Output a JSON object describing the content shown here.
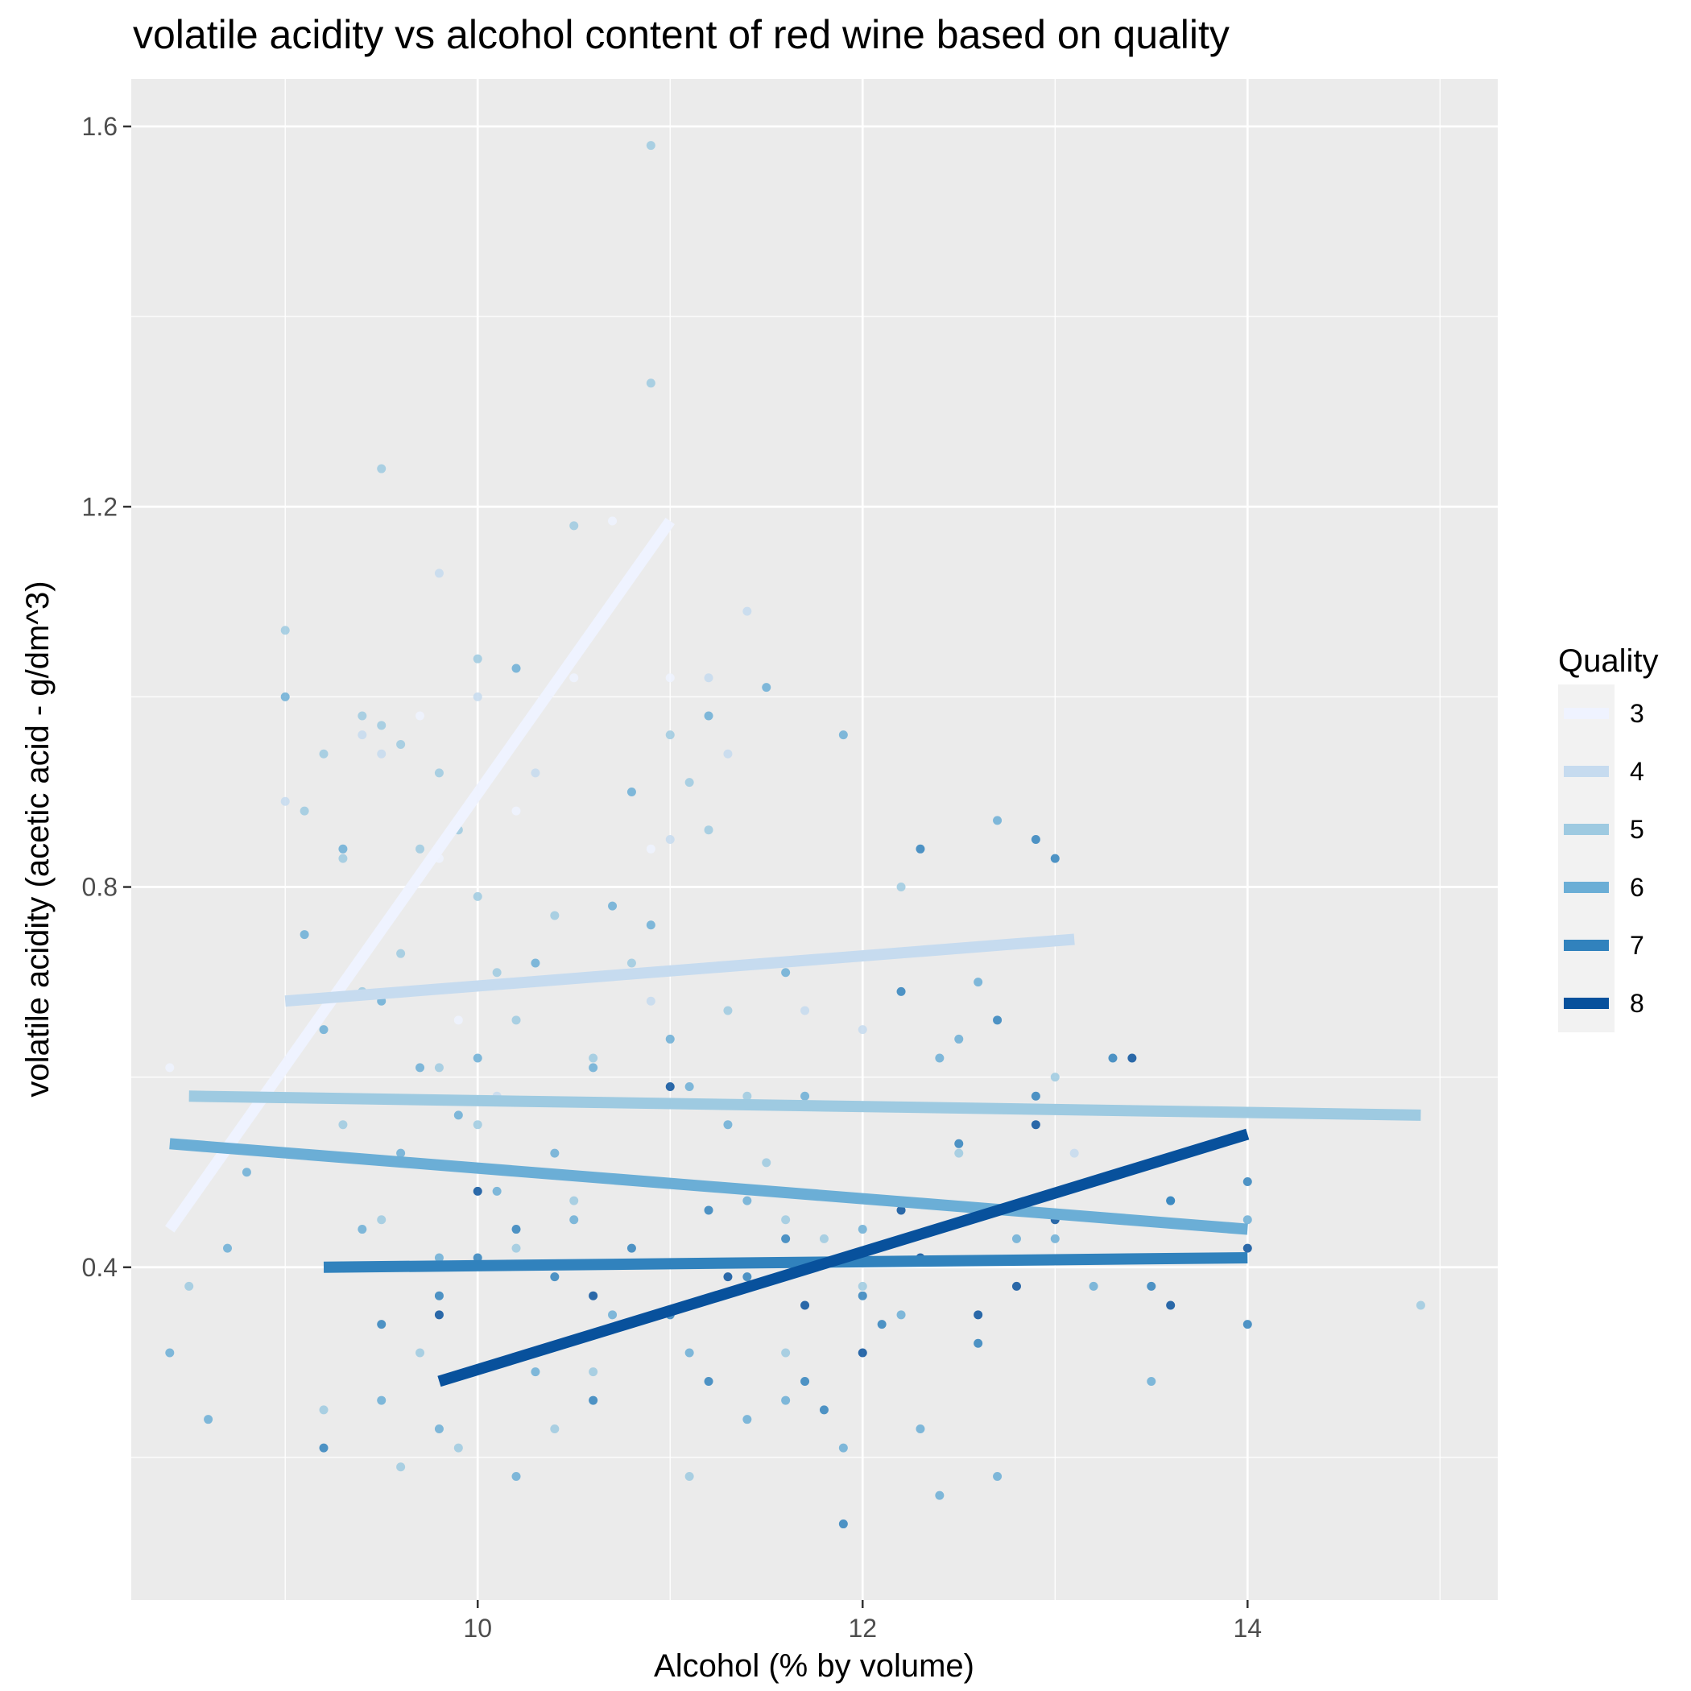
{
  "chart_data": {
    "type": "scatter",
    "title": "volatile acidity vs alcohol content of red wine based on quality",
    "xlabel": "Alcohol (% by volume)",
    "ylabel": "volatile acidity (acetic acid - g/dm^3)",
    "xlim": [
      8.2,
      15.3
    ],
    "ylim": [
      0.05,
      1.65
    ],
    "x_ticks": [
      10,
      12,
      14
    ],
    "x_tick_labels": [
      "10",
      "12",
      "14"
    ],
    "y_ticks": [
      0.4,
      0.8,
      1.2,
      1.6
    ],
    "y_tick_labels": [
      "0.4",
      "0.8",
      "1.2",
      "1.6"
    ],
    "x_minor_ticks": [
      9,
      11,
      13,
      15
    ],
    "y_minor_ticks": [
      0.2,
      0.6,
      1.0,
      1.4
    ],
    "grid": true,
    "legend": {
      "title": "Quality",
      "position": "right",
      "entries": [
        "3",
        "4",
        "5",
        "6",
        "7",
        "8"
      ]
    },
    "colors": {
      "panel_bg": "#ebebeb",
      "grid": "#ffffff",
      "3": "#eff3ff",
      "4": "#c6dbef",
      "5": "#9ecae1",
      "6": "#6baed6",
      "7": "#3182bd",
      "8": "#08519c"
    },
    "series": [
      {
        "name": "3",
        "points": [
          [
            8.4,
            0.61
          ],
          [
            9.0,
            0.58
          ],
          [
            9.7,
            0.98
          ],
          [
            9.9,
            0.66
          ],
          [
            10.2,
            0.88
          ],
          [
            10.5,
            1.02
          ],
          [
            10.7,
            1.185
          ],
          [
            11.0,
            1.02
          ],
          [
            9.8,
            0.83
          ],
          [
            10.9,
            0.84
          ]
        ],
        "trend": [
          [
            8.4,
            0.44
          ],
          [
            11.0,
            1.185
          ]
        ]
      },
      {
        "name": "4",
        "points": [
          [
            9.0,
            0.89
          ],
          [
            9.5,
            0.94
          ],
          [
            9.8,
            1.13
          ],
          [
            10.0,
            1.0
          ],
          [
            10.3,
            0.92
          ],
          [
            10.9,
            0.68
          ],
          [
            11.0,
            0.85
          ],
          [
            11.2,
            1.02
          ],
          [
            11.3,
            0.94
          ],
          [
            11.4,
            1.09
          ],
          [
            11.7,
            0.67
          ],
          [
            13.1,
            0.52
          ],
          [
            9.4,
            0.96
          ],
          [
            10.1,
            0.58
          ],
          [
            12.0,
            0.65
          ]
        ],
        "trend": [
          [
            9.0,
            0.68
          ],
          [
            13.1,
            0.745
          ]
        ]
      },
      {
        "name": "5",
        "points": [
          [
            8.5,
            0.38
          ],
          [
            9.0,
            1.07
          ],
          [
            9.1,
            0.88
          ],
          [
            9.2,
            0.94
          ],
          [
            9.3,
            0.83
          ],
          [
            9.4,
            0.98
          ],
          [
            9.5,
            1.24
          ],
          [
            9.5,
            0.97
          ],
          [
            9.6,
            0.95
          ],
          [
            9.7,
            0.84
          ],
          [
            9.8,
            0.92
          ],
          [
            9.9,
            0.86
          ],
          [
            10.0,
            1.04
          ],
          [
            10.0,
            0.79
          ],
          [
            10.1,
            0.71
          ],
          [
            10.2,
            0.66
          ],
          [
            10.4,
            0.77
          ],
          [
            10.5,
            1.18
          ],
          [
            10.6,
            0.62
          ],
          [
            10.8,
            0.72
          ],
          [
            10.9,
            1.58
          ],
          [
            10.9,
            1.33
          ],
          [
            11.0,
            0.96
          ],
          [
            11.1,
            0.91
          ],
          [
            11.2,
            0.86
          ],
          [
            11.3,
            0.67
          ],
          [
            11.4,
            0.58
          ],
          [
            11.5,
            0.51
          ],
          [
            11.6,
            0.45
          ],
          [
            11.8,
            0.43
          ],
          [
            12.0,
            0.38
          ],
          [
            12.5,
            0.52
          ],
          [
            13.0,
            0.6
          ],
          [
            14.9,
            0.36
          ],
          [
            9.3,
            0.55
          ],
          [
            9.5,
            0.45
          ],
          [
            9.7,
            0.31
          ],
          [
            9.9,
            0.21
          ],
          [
            10.2,
            0.42
          ],
          [
            10.4,
            0.23
          ],
          [
            10.6,
            0.29
          ],
          [
            9.6,
            0.19
          ],
          [
            9.2,
            0.25
          ],
          [
            11.1,
            0.18
          ],
          [
            11.6,
            0.31
          ],
          [
            12.2,
            0.8
          ],
          [
            9.4,
            0.69
          ],
          [
            9.6,
            0.73
          ],
          [
            9.8,
            0.61
          ],
          [
            10.0,
            0.55
          ],
          [
            10.3,
            0.5
          ],
          [
            10.5,
            0.47
          ]
        ],
        "trend": [
          [
            8.5,
            0.58
          ],
          [
            14.9,
            0.56
          ]
        ]
      },
      {
        "name": "6",
        "points": [
          [
            8.4,
            0.31
          ],
          [
            8.7,
            0.42
          ],
          [
            8.8,
            0.5
          ],
          [
            9.0,
            1.0
          ],
          [
            9.1,
            0.75
          ],
          [
            9.2,
            0.65
          ],
          [
            9.3,
            0.84
          ],
          [
            9.4,
            0.44
          ],
          [
            9.5,
            0.68
          ],
          [
            9.6,
            0.52
          ],
          [
            9.7,
            0.61
          ],
          [
            9.8,
            0.41
          ],
          [
            9.9,
            0.56
          ],
          [
            10.0,
            0.62
          ],
          [
            10.1,
            0.48
          ],
          [
            10.2,
            1.03
          ],
          [
            10.3,
            0.72
          ],
          [
            10.4,
            0.52
          ],
          [
            10.5,
            0.45
          ],
          [
            10.6,
            0.61
          ],
          [
            10.7,
            0.78
          ],
          [
            10.8,
            0.9
          ],
          [
            10.9,
            0.76
          ],
          [
            11.0,
            0.64
          ],
          [
            11.1,
            0.59
          ],
          [
            11.2,
            0.98
          ],
          [
            11.3,
            0.55
          ],
          [
            11.4,
            0.47
          ],
          [
            11.5,
            1.01
          ],
          [
            11.6,
            0.71
          ],
          [
            11.7,
            0.58
          ],
          [
            11.9,
            0.96
          ],
          [
            12.0,
            0.44
          ],
          [
            12.2,
            0.35
          ],
          [
            12.4,
            0.62
          ],
          [
            12.5,
            0.64
          ],
          [
            12.6,
            0.7
          ],
          [
            12.7,
            0.87
          ],
          [
            12.8,
            0.43
          ],
          [
            13.0,
            0.43
          ],
          [
            13.2,
            0.38
          ],
          [
            13.5,
            0.28
          ],
          [
            13.6,
            0.47
          ],
          [
            14.0,
            0.45
          ],
          [
            9.5,
            0.26
          ],
          [
            9.8,
            0.23
          ],
          [
            10.3,
            0.29
          ],
          [
            10.7,
            0.35
          ],
          [
            11.1,
            0.31
          ],
          [
            11.6,
            0.26
          ],
          [
            11.9,
            0.21
          ],
          [
            12.3,
            0.23
          ],
          [
            12.7,
            0.18
          ],
          [
            8.6,
            0.24
          ],
          [
            10.2,
            0.18
          ],
          [
            11.4,
            0.24
          ],
          [
            12.4,
            0.16
          ]
        ],
        "trend": [
          [
            8.4,
            0.53
          ],
          [
            14.0,
            0.44
          ]
        ]
      },
      {
        "name": "7",
        "points": [
          [
            9.2,
            0.21
          ],
          [
            9.5,
            0.34
          ],
          [
            9.8,
            0.37
          ],
          [
            10.0,
            0.41
          ],
          [
            10.2,
            0.44
          ],
          [
            10.4,
            0.39
          ],
          [
            10.6,
            0.33
          ],
          [
            10.8,
            0.42
          ],
          [
            11.0,
            0.35
          ],
          [
            11.2,
            0.46
          ],
          [
            11.4,
            0.39
          ],
          [
            11.6,
            0.43
          ],
          [
            11.8,
            0.25
          ],
          [
            12.0,
            0.37
          ],
          [
            12.2,
            0.69
          ],
          [
            12.3,
            0.84
          ],
          [
            12.5,
            0.53
          ],
          [
            12.7,
            0.66
          ],
          [
            12.9,
            0.85
          ],
          [
            13.0,
            0.83
          ],
          [
            13.3,
            0.62
          ],
          [
            13.5,
            0.38
          ],
          [
            13.6,
            0.47
          ],
          [
            14.0,
            0.49
          ],
          [
            14.0,
            0.34
          ],
          [
            11.9,
            0.13
          ],
          [
            12.6,
            0.32
          ],
          [
            12.9,
            0.58
          ],
          [
            11.2,
            0.28
          ],
          [
            10.6,
            0.26
          ],
          [
            12.1,
            0.34
          ],
          [
            11.7,
            0.28
          ]
        ],
        "trend": [
          [
            9.2,
            0.4
          ],
          [
            14.0,
            0.41
          ]
        ]
      },
      {
        "name": "8",
        "points": [
          [
            9.8,
            0.35
          ],
          [
            10.0,
            0.48
          ],
          [
            10.6,
            0.37
          ],
          [
            11.0,
            0.59
          ],
          [
            11.3,
            0.39
          ],
          [
            11.7,
            0.36
          ],
          [
            12.0,
            0.31
          ],
          [
            12.3,
            0.41
          ],
          [
            12.6,
            0.35
          ],
          [
            12.8,
            0.38
          ],
          [
            13.0,
            0.45
          ],
          [
            13.4,
            0.62
          ],
          [
            13.6,
            0.36
          ],
          [
            14.0,
            0.42
          ],
          [
            12.9,
            0.55
          ],
          [
            12.2,
            0.46
          ]
        ],
        "trend": [
          [
            9.8,
            0.28
          ],
          [
            14.0,
            0.54
          ]
        ]
      }
    ]
  }
}
